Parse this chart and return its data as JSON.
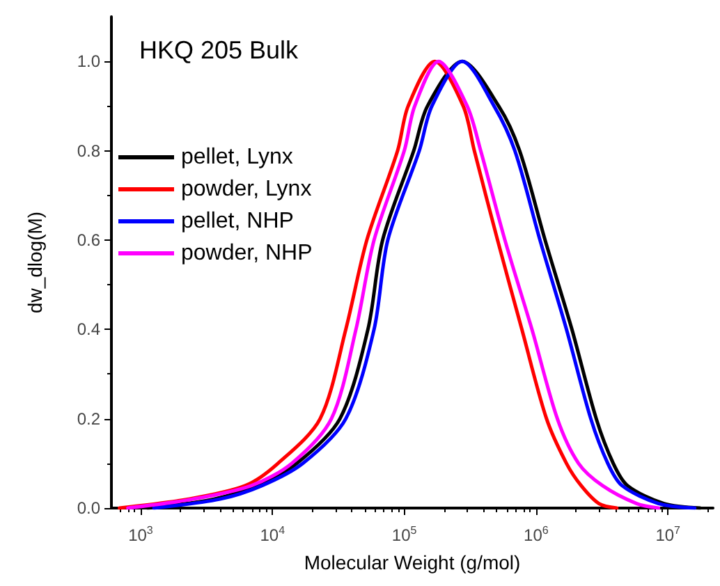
{
  "chart_data": {
    "type": "line",
    "title": "HKQ 205 Bulk",
    "xlabel": "Molecular Weight (g/mol)",
    "ylabel": "dw_dlog(M)",
    "log": "x",
    "xlim": [
      600,
      22000000
    ],
    "xticks": [
      {
        "value": 1000,
        "label": "10$^{3}$"
      },
      {
        "value": 10000,
        "label": "10$^{4}$"
      },
      {
        "value": 100000,
        "label": "10$^{5}$"
      },
      {
        "value": 1000000,
        "label": "10$^{6}$"
      },
      {
        "value": 10000000,
        "label": "10$^{7}$"
      }
    ],
    "ylim": [
      0,
      1.1
    ],
    "yticks": [
      {
        "value": 0,
        "label": "0.0"
      },
      {
        "value": 0.2,
        "label": "0.2"
      },
      {
        "value": 0.4,
        "label": "0.4"
      },
      {
        "value": 0.6,
        "label": "0.6"
      },
      {
        "value": 0.8,
        "label": "0.8"
      },
      {
        "value": 1.0,
        "label": "1.0"
      }
    ],
    "grid": false,
    "legend": "top left",
    "marker": "none",
    "line_style": "solid",
    "series": [
      {
        "name": "pellet, Lynx",
        "color": "#000000",
        "x": [
          1130,
          3600,
          7500,
          15300,
          32500,
          53000,
          68500,
          118000,
          150000,
          275000,
          520000,
          750000,
          1170000,
          1870000,
          2860000,
          3850000,
          4950000,
          9350000,
          17600000
        ],
        "values": [
          0,
          0.02,
          0.05,
          0.1,
          0.2,
          0.4,
          0.6,
          0.8,
          0.9,
          1.0,
          0.9,
          0.8,
          0.6,
          0.4,
          0.2,
          0.1,
          0.05,
          0.01,
          0
        ]
      },
      {
        "name": "powder, Lynx",
        "color": "#ff0000",
        "x": [
          690,
          2300,
          6200,
          11000,
          23000,
          36000,
          52000,
          89000,
          107000,
          170000,
          280000,
          340000,
          510000,
          780000,
          1200000,
          1700000,
          2200000,
          3000000,
          4100000
        ],
        "values": [
          0,
          0.02,
          0.05,
          0.1,
          0.2,
          0.4,
          0.6,
          0.8,
          0.9,
          1.0,
          0.9,
          0.8,
          0.6,
          0.4,
          0.2,
          0.1,
          0.05,
          0.01,
          0
        ]
      },
      {
        "name": "pellet, NHP",
        "color": "#0000ff",
        "x": [
          1260,
          4000,
          8300,
          17000,
          36000,
          59000,
          75000,
          130000,
          162000,
          275000,
          480000,
          690000,
          1070000,
          1700000,
          2600000,
          3500000,
          4500000,
          8500000,
          16000000
        ],
        "values": [
          0,
          0.02,
          0.05,
          0.1,
          0.2,
          0.4,
          0.6,
          0.8,
          0.9,
          1.0,
          0.9,
          0.8,
          0.6,
          0.4,
          0.2,
          0.1,
          0.05,
          0.01,
          0
        ]
      },
      {
        "name": "powder, NHP",
        "color": "#ff00ff",
        "x": [
          800,
          2500,
          6900,
          14000,
          28000,
          43000,
          59000,
          100000,
          120000,
          182000,
          300000,
          380000,
          580000,
          930000,
          1450000,
          2100000,
          3200000,
          5800000,
          8500000
        ],
        "values": [
          0,
          0.02,
          0.05,
          0.1,
          0.2,
          0.4,
          0.6,
          0.8,
          0.9,
          1.0,
          0.9,
          0.8,
          0.6,
          0.4,
          0.2,
          0.1,
          0.05,
          0.01,
          0
        ]
      }
    ]
  }
}
